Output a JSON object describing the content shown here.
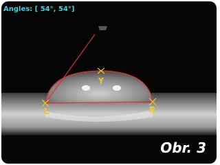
{
  "header": {
    "angles": "Angles: [ 54°, 54°]"
  },
  "markers": {
    "apex": "Y",
    "left": "L",
    "right": "R"
  },
  "caption": "Obr. 3"
}
